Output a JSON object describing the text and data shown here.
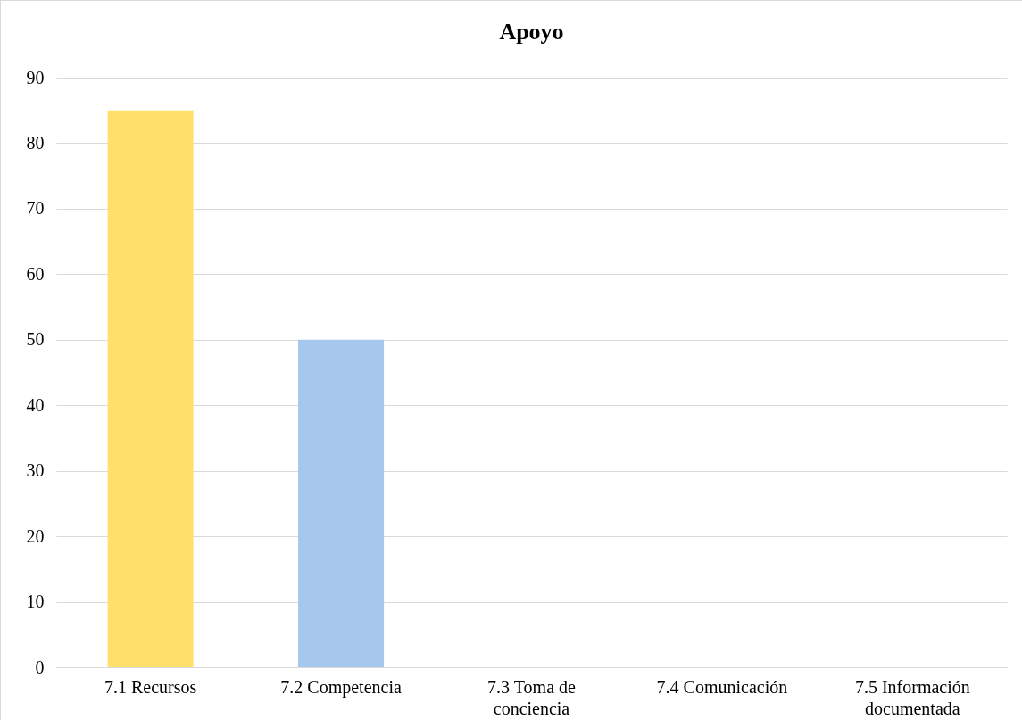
{
  "chart_data": {
    "type": "bar",
    "title": "Apoyo",
    "categories": [
      "7.1 Recursos",
      "7.2 Competencia",
      "7.3 Toma de conciencia",
      "7.4 Comunicación",
      "7.5 Información documentada"
    ],
    "values": [
      85,
      50,
      0,
      0,
      0
    ],
    "colors": [
      "#ffe06b",
      "#a6c8ec",
      "#a6c8ec",
      "#a6c8ec",
      "#a6c8ec"
    ],
    "ylim": [
      0,
      90
    ],
    "yticks": [
      0,
      10,
      20,
      30,
      40,
      50,
      60,
      70,
      80,
      90
    ],
    "grid": "y"
  }
}
